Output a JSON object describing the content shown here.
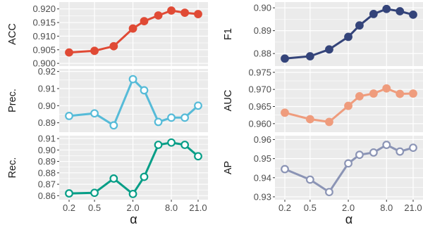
{
  "figure": {
    "colors": {
      "panel_bg": "#ebebeb",
      "grid": "#ffffff",
      "tick_text": "#4d4d4d",
      "label_text": "#1a1a1a"
    }
  },
  "chart_data": [
    {
      "type": "line",
      "column": "left",
      "row": 1,
      "ylabel": "ACC",
      "xlabel": "",
      "color": "#e04a35",
      "marker": "filled",
      "x": [
        0.2,
        0.5,
        1.0,
        2.0,
        3.0,
        5.0,
        8.0,
        13.0,
        21.0
      ],
      "y": [
        0.904,
        0.9046,
        0.9063,
        0.9128,
        0.9155,
        0.9176,
        0.9194,
        0.9186,
        0.9181
      ],
      "ylim": [
        0.899,
        0.9225
      ],
      "yticks": [
        0.9,
        0.905,
        0.91,
        0.915,
        0.92
      ],
      "ytick_labels": [
        "0.900",
        "0.905",
        "0.910",
        "0.915",
        "0.920"
      ],
      "xticks": [
        0.2,
        0.5,
        2.0,
        8.0,
        21.0
      ],
      "xtick_labels": []
    },
    {
      "type": "line",
      "column": "left",
      "row": 2,
      "ylabel": "Prec.",
      "xlabel": "",
      "color": "#56bbd8",
      "marker": "hollow",
      "x": [
        0.2,
        0.5,
        1.0,
        2.0,
        3.0,
        5.0,
        8.0,
        13.0,
        21.0
      ],
      "y": [
        0.894,
        0.8955,
        0.8885,
        0.9155,
        0.909,
        0.8905,
        0.893,
        0.893,
        0.9
      ],
      "ylim": [
        0.8845,
        0.9215
      ],
      "yticks": [
        0.89,
        0.9,
        0.91,
        0.92
      ],
      "ytick_labels": [
        "0.89",
        "0.90",
        "0.91",
        "0.92"
      ],
      "xticks": [
        0.2,
        0.5,
        2.0,
        8.0,
        21.0
      ],
      "xtick_labels": []
    },
    {
      "type": "line",
      "column": "left",
      "row": 3,
      "ylabel": "Rec.",
      "xlabel": "α",
      "color": "#079e87",
      "marker": "hollow",
      "x": [
        0.2,
        0.5,
        1.0,
        2.0,
        3.0,
        5.0,
        8.0,
        13.0,
        21.0
      ],
      "y": [
        0.862,
        0.8625,
        0.875,
        0.8615,
        0.8765,
        0.9045,
        0.9065,
        0.9045,
        0.8945
      ],
      "ylim": [
        0.8565,
        0.9125
      ],
      "yticks": [
        0.86,
        0.87,
        0.88,
        0.89,
        0.9,
        0.91
      ],
      "ytick_labels": [
        "0.86",
        "0.87",
        "0.88",
        "0.89",
        "0.90",
        "0.91"
      ],
      "xticks": [
        0.2,
        0.5,
        2.0,
        8.0,
        21.0
      ],
      "xtick_labels": [
        "0.2",
        "0.5",
        "2.0",
        "8.0",
        "21.0"
      ]
    },
    {
      "type": "line",
      "column": "right",
      "row": 1,
      "ylabel": "F1",
      "xlabel": "",
      "color": "#34447a",
      "marker": "filled",
      "x": [
        0.2,
        0.5,
        1.0,
        2.0,
        3.0,
        5.0,
        8.0,
        13.0,
        21.0
      ],
      "y": [
        0.8778,
        0.8788,
        0.8818,
        0.8873,
        0.8923,
        0.8973,
        0.8995,
        0.8985,
        0.897
      ],
      "ylim": [
        0.8745,
        0.9025
      ],
      "yticks": [
        0.88,
        0.89,
        0.9
      ],
      "ytick_labels": [
        "0.88",
        "0.89",
        "0.90"
      ],
      "xticks": [
        0.2,
        0.5,
        2.0,
        8.0,
        21.0
      ],
      "xtick_labels": []
    },
    {
      "type": "line",
      "column": "right",
      "row": 2,
      "ylabel": "AUC",
      "xlabel": "",
      "color": "#ef9c7d",
      "marker": "filled",
      "x": [
        0.2,
        0.5,
        1.0,
        2.0,
        3.0,
        5.0,
        8.0,
        13.0,
        21.0
      ],
      "y": [
        0.9632,
        0.9613,
        0.9605,
        0.9652,
        0.968,
        0.9688,
        0.9703,
        0.9687,
        0.9688
      ],
      "ylim": [
        0.9575,
        0.976
      ],
      "yticks": [
        0.96,
        0.965,
        0.97,
        0.975
      ],
      "ytick_labels": [
        "0.960",
        "0.965",
        "0.970",
        "0.975"
      ],
      "xticks": [
        0.2,
        0.5,
        2.0,
        8.0,
        21.0
      ],
      "xtick_labels": []
    },
    {
      "type": "line",
      "column": "right",
      "row": 3,
      "ylabel": "AP",
      "xlabel": "α",
      "color": "#8b94b5",
      "marker": "hollow",
      "x": [
        0.2,
        0.5,
        1.0,
        2.0,
        3.0,
        5.0,
        8.0,
        13.0,
        21.0
      ],
      "y": [
        0.9445,
        0.939,
        0.9325,
        0.9475,
        0.952,
        0.9532,
        0.9572,
        0.9537,
        0.9557
      ],
      "ylim": [
        0.9285,
        0.962
      ],
      "yticks": [
        0.93,
        0.94,
        0.95,
        0.96
      ],
      "ytick_labels": [
        "0.93",
        "0.94",
        "0.95",
        "0.96"
      ],
      "xticks": [
        0.2,
        0.5,
        2.0,
        8.0,
        21.0
      ],
      "xtick_labels": [
        "0.2",
        "0.5",
        "2.0",
        "8.0",
        "21.0"
      ]
    }
  ]
}
